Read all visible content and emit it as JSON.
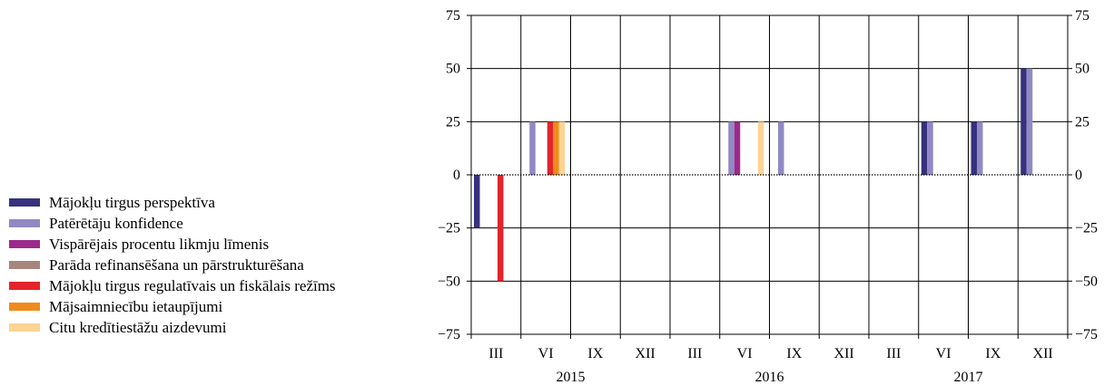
{
  "chart_data": {
    "type": "bar",
    "title": "",
    "xlabel": "",
    "ylabel": "",
    "ylim": [
      -75,
      75
    ],
    "yticks": [
      "75",
      "50",
      "25",
      "0",
      "−25",
      "−50",
      "−75"
    ],
    "categories": [
      "III",
      "VI",
      "IX",
      "XII",
      "III",
      "VI",
      "IX",
      "XII",
      "III",
      "VI",
      "IX",
      "XII"
    ],
    "years": [
      "2015",
      "2016",
      "2017"
    ],
    "legend_position": "left",
    "grid": true,
    "series": [
      {
        "name": "Mājokļu tirgus perspektīva",
        "color": "#37307e",
        "values": [
          -25,
          0,
          0,
          0,
          0,
          0,
          0,
          0,
          0,
          25,
          25,
          50
        ]
      },
      {
        "name": "Patērētāju konfidence",
        "color": "#9189c4",
        "values": [
          0,
          25,
          0,
          0,
          0,
          25,
          25,
          0,
          0,
          25,
          25,
          50
        ]
      },
      {
        "name": "Vispārējais procentu likmju līmenis",
        "color": "#9c2a8c",
        "values": [
          0,
          0,
          0,
          0,
          0,
          25,
          0,
          0,
          0,
          0,
          0,
          0
        ]
      },
      {
        "name": "Parāda refinansēšana un pārstrukturēšana",
        "color": "#a7877d",
        "values": [
          0,
          0,
          0,
          0,
          0,
          0,
          0,
          0,
          0,
          0,
          0,
          0
        ]
      },
      {
        "name": "Mājokļu tirgus regulatīvais un fiskālais režīms",
        "color": "#e3242b",
        "values": [
          -50,
          25,
          0,
          0,
          0,
          0,
          0,
          0,
          0,
          0,
          0,
          0
        ]
      },
      {
        "name": "Mājsaimniecību ietaupījumi",
        "color": "#f08a1c",
        "values": [
          0,
          25,
          0,
          0,
          0,
          0,
          0,
          0,
          0,
          0,
          0,
          0
        ]
      },
      {
        "name": "Citu kredītiestāžu aizdevumi",
        "color": "#fcd494",
        "values": [
          0,
          25,
          0,
          0,
          0,
          25,
          0,
          0,
          0,
          0,
          0,
          0
        ]
      }
    ]
  }
}
